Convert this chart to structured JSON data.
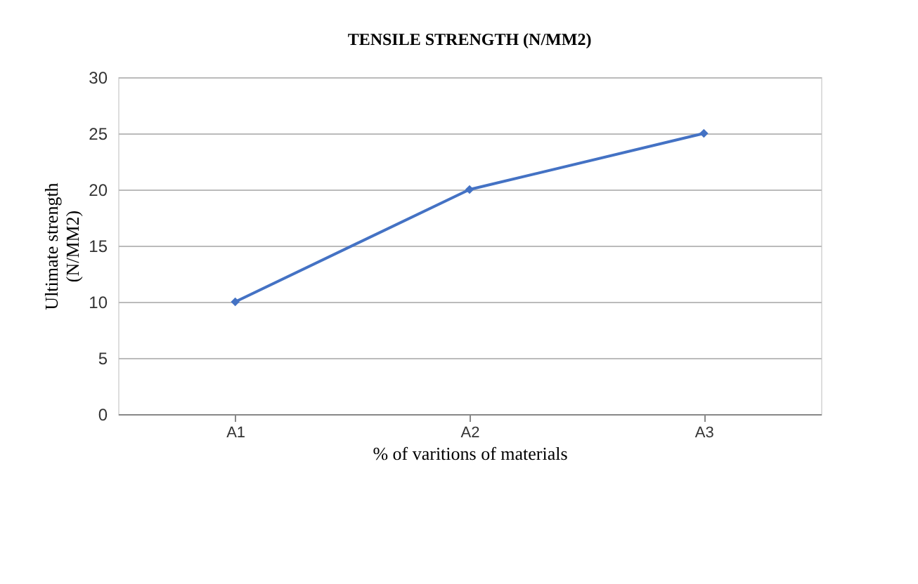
{
  "chart_data": {
    "type": "line",
    "title": "TENSILE STRENGTH (N/MM2)",
    "xlabel": "% of varitions of materials",
    "ylabel": "Ultimate strength\n(N/MM2)",
    "categories": [
      "A1",
      "A2",
      "A3"
    ],
    "series": [
      {
        "color": "#4472c4",
        "values": [
          10,
          20,
          25
        ]
      }
    ],
    "ylim": [
      0,
      30
    ],
    "yticks": [
      0,
      5,
      10,
      15,
      20,
      25,
      30
    ],
    "grid": "y",
    "marker": "diamond",
    "line_style": "solid"
  }
}
